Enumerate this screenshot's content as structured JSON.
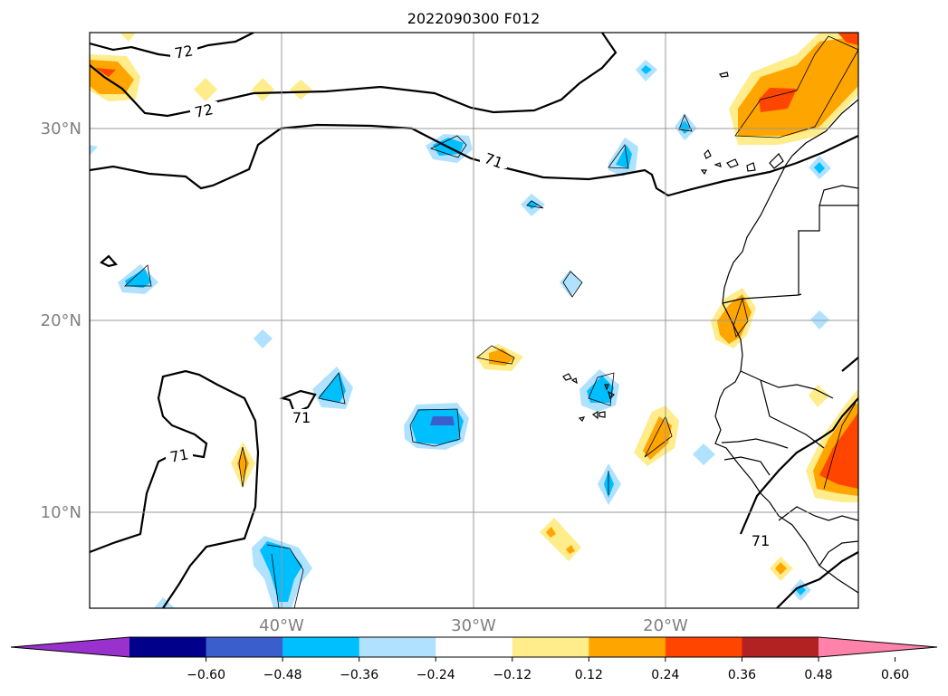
{
  "title": "2022090300 F012",
  "map": {
    "lat_labels": [
      "30°N",
      "20°N",
      "10°N"
    ],
    "lon_labels": [
      "40°W",
      "30°W",
      "20°W"
    ],
    "contour_labels": [
      "72",
      "72",
      "71",
      "71",
      "71",
      "71"
    ],
    "label_color": "#808080"
  },
  "colorbar": {
    "ticks": [
      "−0.60",
      "−0.48",
      "−0.36",
      "−0.24",
      "−0.12",
      "0.12",
      "0.24",
      "0.36",
      "0.48",
      "0.60"
    ],
    "colors": [
      "#9932cc",
      "#00008b",
      "#3a5fcd",
      "#00bfff",
      "#b0e2ff",
      "#ffffff",
      "#ffec8b",
      "#ffa500",
      "#ff4500",
      "#b22222",
      "#ff82ab"
    ]
  }
}
